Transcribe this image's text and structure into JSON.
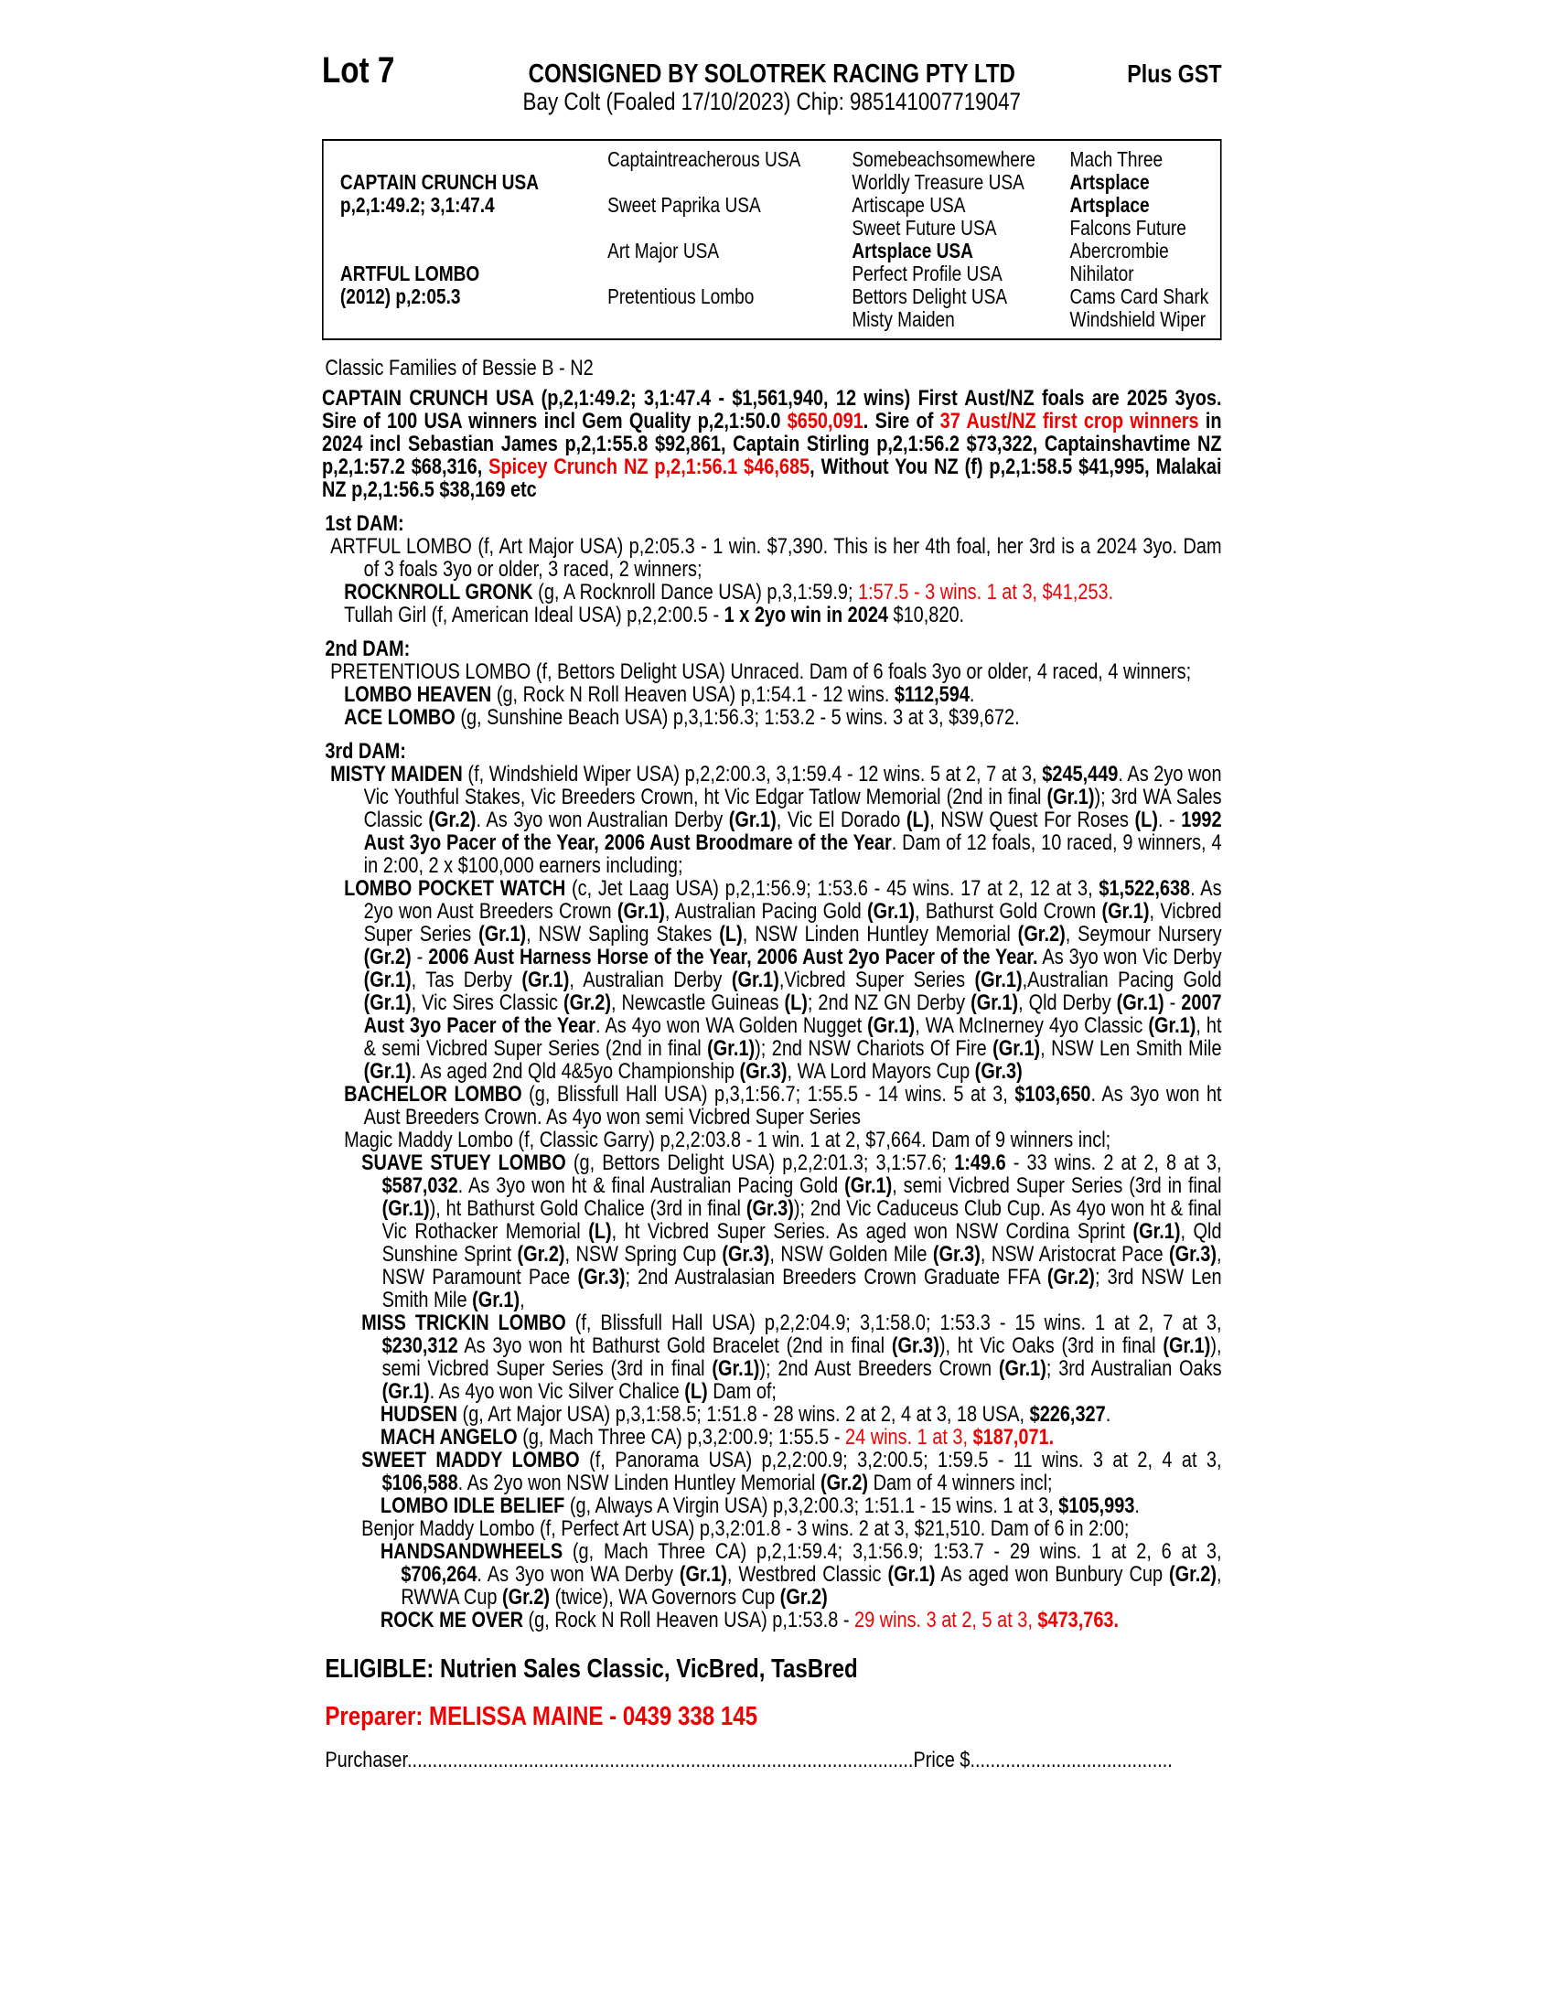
{
  "colors": {
    "red": "#f00000",
    "text": "#000000",
    "background": "#ffffff"
  },
  "header": {
    "lot": "Lot 7",
    "consigned": "CONSIGNED BY SOLOTREK RACING PTY LTD",
    "plus_gst": "Plus GST",
    "subtitle": "Bay Colt (Foaled 17/10/2023) Chip: 985141007719047"
  },
  "pedigree": {
    "sire": {
      "name": "CAPTAIN CRUNCH USA",
      "record": "p,2,1:49.2; 3,1:47.4"
    },
    "dam": {
      "name": "ARTFUL LOMBO",
      "record": "(2012) p,2:05.3"
    },
    "col2": [
      "Captaintreacherous USA",
      "Sweet Paprika USA",
      "Art Major USA",
      "Pretentious Lombo"
    ],
    "col3": [
      [
        {
          "t": "Somebeachsomewhere"
        }
      ],
      [
        {
          "t": "Worldly Treasure USA"
        }
      ],
      [
        {
          "t": "Artiscape USA"
        }
      ],
      [
        {
          "t": "Sweet Future USA"
        }
      ],
      [
        {
          "t": "Artsplace USA",
          "b": true
        }
      ],
      [
        {
          "t": "Perfect Profile USA"
        }
      ],
      [
        {
          "t": "Bettors Delight USA"
        }
      ],
      [
        {
          "t": "Misty Maiden"
        }
      ]
    ],
    "col4": [
      [
        {
          "t": "Mach Three"
        }
      ],
      [
        {
          "t": "Artsplace",
          "b": true
        }
      ],
      [
        {
          "t": "Artsplace",
          "b": true
        }
      ],
      [
        {
          "t": "Falcons Future"
        }
      ],
      [
        {
          "t": "Abercrombie"
        }
      ],
      [
        {
          "t": "Nihilator"
        }
      ],
      [
        {
          "t": "Cams Card Shark"
        }
      ],
      [
        {
          "t": "Windshield Wiper"
        }
      ]
    ]
  },
  "families_line": "Classic Families of Bessie B - N2",
  "sire_para": [
    {
      "t": "CAPTAIN CRUNCH USA (p,2,1:49.2; 3,1:47.4 - $1,561,940, 12 wins) First Aust/NZ foals are 2025 3yos. Sire of 100 USA winners incl Gem Quality p,2,1:50.0 ",
      "b": true
    },
    {
      "t": "$650,091",
      "b": true,
      "r": true
    },
    {
      "t": ". Sire of ",
      "b": true
    },
    {
      "t": "37 Aust/NZ first crop winners",
      "b": true,
      "r": true
    },
    {
      "t": " in 2024 incl Sebastian James p,2,1:55.8 $92,861, Captain Stirling p,2,1:56.2 $73,322, Captainshavtime NZ p,2,1:57.2 $68,316, ",
      "b": true
    },
    {
      "t": "Spicey Crunch NZ p,2,1:56.1 $46,685",
      "b": true,
      "r": true
    },
    {
      "t": ", Without You NZ (f) p,2,1:58.5 $41,995, Malakai NZ p,2,1:56.5 $38,169 etc",
      "b": true
    }
  ],
  "dams": [
    {
      "heading": "1st DAM:",
      "paras": [
        [
          {
            "t": "ARTFUL LOMBO (f, Art Major USA) p,2:05.3 - 1 win. $7,390. This is her 4th foal, her 3rd is a 2024 3yo. Dam of 3 foals 3yo or older, 3 raced, 2 winners;"
          }
        ],
        [
          {
            "t": "ROCKNROLL GRONK",
            "b": true
          },
          {
            "t": " (g, A Rocknroll Dance USA) p,3,1:59.9; "
          },
          {
            "t": "1:57.5 - 3 wins. 1 at 3, $41,253.",
            "r": true
          }
        ],
        [
          {
            "t": "Tullah Girl (f, American Ideal USA) p,2,2:00.5 - "
          },
          {
            "t": "1 x 2yo win in 2024",
            "b": true
          },
          {
            "t": " $10,820."
          }
        ]
      ]
    },
    {
      "heading": "2nd DAM:",
      "paras": [
        [
          {
            "t": "PRETENTIOUS LOMBO (f, Bettors Delight USA) Unraced. Dam of 6 foals 3yo or older, 4 raced, 4 winners;"
          }
        ],
        [
          {
            "t": "LOMBO HEAVEN",
            "b": true
          },
          {
            "t": " (g, Rock N Roll Heaven USA) p,1:54.1 - 12 wins. "
          },
          {
            "t": "$112,594",
            "b": true
          },
          {
            "t": "."
          }
        ],
        [
          {
            "t": "ACE LOMBO",
            "b": true
          },
          {
            "t": " (g, Sunshine Beach USA) p,3,1:56.3; 1:53.2 - 5 wins. 3 at 3, $39,672."
          }
        ]
      ]
    },
    {
      "heading": "3rd DAM:",
      "paras": [
        [
          {
            "t": "MISTY MAIDEN",
            "b": true
          },
          {
            "t": " (f, Windshield Wiper USA) p,2,2:00.3, 3,1:59.4 - 12 wins. 5 at 2, 7 at 3, "
          },
          {
            "t": "$245,449",
            "b": true
          },
          {
            "t": ". As 2yo won Vic Youthful Stakes, Vic Breeders Crown, ht Vic Edgar Tatlow Memorial (2nd in final "
          },
          {
            "t": "(Gr.1)",
            "b": true
          },
          {
            "t": "); 3rd WA Sales Classic "
          },
          {
            "t": "(Gr.2)",
            "b": true
          },
          {
            "t": ". As 3yo won Australian Derby "
          },
          {
            "t": "(Gr.1)",
            "b": true
          },
          {
            "t": ", Vic El Dorado "
          },
          {
            "t": "(L)",
            "b": true
          },
          {
            "t": ", NSW Quest For Roses "
          },
          {
            "t": "(L)",
            "b": true
          },
          {
            "t": ". - "
          },
          {
            "t": "1992 Aust 3yo Pacer of the Year, 2006 Aust Broodmare of the Year",
            "b": true
          },
          {
            "t": ". Dam of 12 foals, 10 raced, 9 winners, 4 in 2:00, 2 x $100,000 earners including;"
          }
        ],
        [
          {
            "t": "LOMBO POCKET WATCH",
            "b": true
          },
          {
            "t": " (c, Jet Laag USA) p,2,1:56.9; 1:53.6 - 45 wins. 17 at 2, 12 at 3, "
          },
          {
            "t": "$1,522,638",
            "b": true
          },
          {
            "t": ". As 2yo won Aust Breeders Crown "
          },
          {
            "t": "(Gr.1)",
            "b": true
          },
          {
            "t": ", Australian Pacing Gold "
          },
          {
            "t": "(Gr.1)",
            "b": true
          },
          {
            "t": ", Bathurst Gold Crown "
          },
          {
            "t": "(Gr.1)",
            "b": true
          },
          {
            "t": ", Vicbred Super Series "
          },
          {
            "t": "(Gr.1)",
            "b": true
          },
          {
            "t": ", NSW Sapling Stakes "
          },
          {
            "t": "(L)",
            "b": true
          },
          {
            "t": ", NSW Linden Huntley Memorial "
          },
          {
            "t": "(Gr.2)",
            "b": true
          },
          {
            "t": ", Seymour Nursery "
          },
          {
            "t": "(Gr.2)",
            "b": true
          },
          {
            "t": " - "
          },
          {
            "t": "2006 Aust Harness Horse of the Year, 2006 Aust 2yo Pacer of the Year.",
            "b": true
          },
          {
            "t": " As 3yo won Vic Derby "
          },
          {
            "t": "(Gr.1)",
            "b": true
          },
          {
            "t": ", Tas Derby "
          },
          {
            "t": "(Gr.1)",
            "b": true
          },
          {
            "t": ", Australian Derby "
          },
          {
            "t": "(Gr.1)",
            "b": true
          },
          {
            "t": ",Vicbred Super Series "
          },
          {
            "t": "(Gr.1)",
            "b": true
          },
          {
            "t": ",Australian Pacing Gold "
          },
          {
            "t": "(Gr.1)",
            "b": true
          },
          {
            "t": ", Vic Sires Classic "
          },
          {
            "t": "(Gr.2)",
            "b": true
          },
          {
            "t": ", Newcastle Guineas "
          },
          {
            "t": "(L)",
            "b": true
          },
          {
            "t": "; 2nd NZ GN Derby "
          },
          {
            "t": "(Gr.1)",
            "b": true
          },
          {
            "t": ", Qld Derby "
          },
          {
            "t": "(Gr.1)",
            "b": true
          },
          {
            "t": " - "
          },
          {
            "t": "2007 Aust 3yo Pacer of the Year",
            "b": true
          },
          {
            "t": ". As 4yo won WA Golden Nugget "
          },
          {
            "t": "(Gr.1)",
            "b": true
          },
          {
            "t": ", WA McInerney 4yo Classic "
          },
          {
            "t": "(Gr.1)",
            "b": true
          },
          {
            "t": ", ht & semi Vicbred Super Series (2nd in final "
          },
          {
            "t": "(Gr.1)",
            "b": true
          },
          {
            "t": "); 2nd NSW Chariots Of Fire "
          },
          {
            "t": "(Gr.1)",
            "b": true
          },
          {
            "t": ", NSW Len Smith Mile "
          },
          {
            "t": "(Gr.1)",
            "b": true
          },
          {
            "t": ". As aged 2nd Qld 4&5yo Championship "
          },
          {
            "t": "(Gr.3)",
            "b": true
          },
          {
            "t": ", WA Lord Mayors Cup "
          },
          {
            "t": "(Gr.3)",
            "b": true
          }
        ],
        [
          {
            "t": "BACHELOR LOMBO",
            "b": true
          },
          {
            "t": " (g, Blissfull Hall USA) p,3,1:56.7; 1:55.5 - 14 wins. 5 at 3, "
          },
          {
            "t": "$103,650",
            "b": true
          },
          {
            "t": ". As 3yo won ht Aust Breeders Crown. As 4yo won semi Vicbred Super Series"
          }
        ],
        [
          {
            "t": "Magic Maddy Lombo (f, Classic Garry) p,2,2:03.8 - 1 win. 1 at 2, $7,664. Dam of 9 winners incl;"
          }
        ],
        [
          {
            "t": "SUAVE STUEY LOMBO",
            "b": true
          },
          {
            "t": " (g, Bettors Delight USA) p,2,2:01.3; 3,1:57.6; "
          },
          {
            "t": "1:49.6",
            "b": true
          },
          {
            "t": " - 33 wins. 2 at 2, 8 at 3, "
          },
          {
            "t": "$587,032",
            "b": true
          },
          {
            "t": ". As 3yo won ht & final Australian Pacing Gold "
          },
          {
            "t": "(Gr.1)",
            "b": true
          },
          {
            "t": ", semi Vicbred Super Series (3rd in final "
          },
          {
            "t": "(Gr.1)",
            "b": true
          },
          {
            "t": "), ht Bathurst Gold Chalice (3rd in final "
          },
          {
            "t": "(Gr.3)",
            "b": true
          },
          {
            "t": "); 2nd Vic Caduceus Club Cup. As 4yo won ht & final Vic Rothacker Memorial "
          },
          {
            "t": "(L)",
            "b": true
          },
          {
            "t": ", ht Vicbred Super Series. As aged won NSW Cordina Sprint "
          },
          {
            "t": "(Gr.1)",
            "b": true
          },
          {
            "t": ", Qld Sunshine Sprint "
          },
          {
            "t": "(Gr.2)",
            "b": true
          },
          {
            "t": ", NSW Spring Cup "
          },
          {
            "t": "(Gr.3)",
            "b": true
          },
          {
            "t": ", NSW Golden Mile "
          },
          {
            "t": "(Gr.3)",
            "b": true
          },
          {
            "t": ", NSW Aristocrat Pace "
          },
          {
            "t": "(Gr.3)",
            "b": true
          },
          {
            "t": ", NSW Paramount Pace "
          },
          {
            "t": "(Gr.3)",
            "b": true
          },
          {
            "t": "; 2nd Australasian Breeders Crown Graduate FFA "
          },
          {
            "t": "(Gr.2)",
            "b": true
          },
          {
            "t": "; 3rd NSW Len Smith Mile "
          },
          {
            "t": "(Gr.1)",
            "b": true
          },
          {
            "t": ","
          }
        ],
        [
          {
            "t": "MISS TRICKIN LOMBO",
            "b": true
          },
          {
            "t": " (f, Blissfull Hall USA) p,2,2:04.9; 3,1:58.0; 1:53.3 - 15 wins. 1 at 2, 7 at 3, "
          },
          {
            "t": "$230,312",
            "b": true
          },
          {
            "t": " As 3yo won ht Bathurst Gold Bracelet (2nd in final "
          },
          {
            "t": "(Gr.3)",
            "b": true
          },
          {
            "t": "), ht Vic Oaks (3rd in final "
          },
          {
            "t": "(Gr.1)",
            "b": true
          },
          {
            "t": "), semi Vicbred Super Series (3rd in final "
          },
          {
            "t": "(Gr.1)",
            "b": true
          },
          {
            "t": "); 2nd Aust Breeders Crown "
          },
          {
            "t": "(Gr.1)",
            "b": true
          },
          {
            "t": "; 3rd Australian Oaks "
          },
          {
            "t": "(Gr.1)",
            "b": true
          },
          {
            "t": ". As 4yo won Vic Silver Chalice "
          },
          {
            "t": "(L)",
            "b": true
          },
          {
            "t": " Dam of;"
          }
        ],
        [
          {
            "t": "HUDSEN",
            "b": true
          },
          {
            "t": " (g, Art Major USA) p,3,1:58.5; 1:51.8 - 28 wins. 2 at 2, 4 at 3, 18 USA, "
          },
          {
            "t": "$226,327",
            "b": true
          },
          {
            "t": "."
          }
        ],
        [
          {
            "t": "MACH ANGELO",
            "b": true
          },
          {
            "t": " (g, Mach Three CA) p,3,2:00.9; 1:55.5 - "
          },
          {
            "t": "24 wins. 1 at 3, ",
            "r": true
          },
          {
            "t": "$187,071.",
            "r": true,
            "b": true
          }
        ],
        [
          {
            "t": "SWEET MADDY LOMBO",
            "b": true
          },
          {
            "t": " (f, Panorama USA) p,2,2:00.9; 3,2:00.5; 1:59.5 - 11 wins. 3 at 2, 4 at 3, "
          },
          {
            "t": "$106,588",
            "b": true
          },
          {
            "t": ". As 2yo won NSW Linden Huntley Memorial "
          },
          {
            "t": "(Gr.2)",
            "b": true
          },
          {
            "t": " Dam of 4 winners incl;"
          }
        ],
        [
          {
            "t": "LOMBO IDLE BELIEF",
            "b": true
          },
          {
            "t": " (g, Always A Virgin USA) p,3,2:00.3; 1:51.1 - 15 wins. 1 at 3, "
          },
          {
            "t": "$105,993",
            "b": true
          },
          {
            "t": "."
          }
        ],
        [
          {
            "t": "Benjor Maddy Lombo (f, Perfect Art USA) p,3,2:01.8 - 3 wins. 2 at 3, $21,510. Dam of 6 in 2:00;"
          }
        ],
        [
          {
            "t": "HANDSANDWHEELS",
            "b": true
          },
          {
            "t": " (g, Mach Three CA) p,2,1:59.4; 3,1:56.9; 1:53.7 - 29 wins. 1 at 2, 6 at 3, "
          },
          {
            "t": "$706,264",
            "b": true
          },
          {
            "t": ". As 3yo won WA Derby "
          },
          {
            "t": "(Gr.1)",
            "b": true
          },
          {
            "t": ", Westbred Classic "
          },
          {
            "t": "(Gr.1)",
            "b": true
          },
          {
            "t": " As aged won Bunbury Cup "
          },
          {
            "t": "(Gr.2)",
            "b": true
          },
          {
            "t": ", RWWA Cup "
          },
          {
            "t": "(Gr.2)",
            "b": true
          },
          {
            "t": " (twice), WA Governors Cup "
          },
          {
            "t": "(Gr.2)",
            "b": true
          }
        ],
        [
          {
            "t": "ROCK ME OVER",
            "b": true
          },
          {
            "t": " (g, Rock N Roll Heaven USA) p,1:53.8 - "
          },
          {
            "t": "29 wins. 3 at 2, 5 at 3, ",
            "r": true
          },
          {
            "t": "$473,763.",
            "r": true,
            "b": true
          }
        ]
      ]
    }
  ],
  "eligible": "ELIGIBLE: Nutrien Sales Classic, VicBred, TasBred",
  "preparer": "Preparer: MELISSA MAINE - 0439 338 145",
  "purchaser_line": {
    "purchaser_label": "Purchaser",
    "leader1": "....................................................................................................",
    "price_label": "Price $",
    "leader2": "........................................"
  }
}
